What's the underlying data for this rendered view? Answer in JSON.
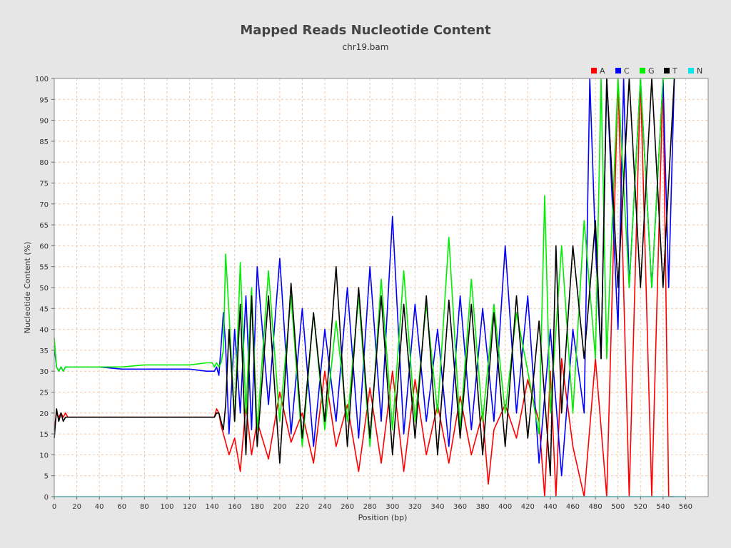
{
  "chart_data": {
    "type": "line",
    "title": "Mapped Reads Nucleotide Content",
    "subtitle": "chr19.bam",
    "xlabel": "Position (bp)",
    "ylabel": "Nucleotide Content (%)",
    "xlim": [
      0,
      580
    ],
    "ylim": [
      0,
      100
    ],
    "x_ticks": [
      0,
      20,
      40,
      60,
      80,
      100,
      120,
      140,
      160,
      180,
      200,
      220,
      240,
      260,
      280,
      300,
      320,
      340,
      360,
      380,
      400,
      420,
      440,
      460,
      480,
      500,
      520,
      540,
      560
    ],
    "y_ticks": [
      0,
      5,
      10,
      15,
      20,
      25,
      30,
      35,
      40,
      45,
      50,
      55,
      60,
      65,
      70,
      75,
      80,
      85,
      90,
      95,
      100
    ],
    "grid": true,
    "legend_position": "top-right",
    "series": [
      {
        "name": "A",
        "color": "#ff0000",
        "x": [
          0,
          2,
          4,
          6,
          8,
          10,
          12,
          20,
          40,
          60,
          80,
          100,
          120,
          135,
          140,
          142,
          144,
          146,
          148,
          150,
          152,
          155,
          160,
          165,
          170,
          175,
          180,
          190,
          200,
          210,
          220,
          230,
          240,
          250,
          260,
          270,
          280,
          290,
          300,
          310,
          320,
          330,
          340,
          350,
          360,
          370,
          380,
          385,
          390,
          400,
          410,
          420,
          430,
          435,
          440,
          445,
          450,
          460,
          470,
          480,
          490,
          500,
          510,
          520,
          530,
          540,
          545,
          550
        ],
        "values": [
          16,
          20,
          19,
          20,
          19,
          20,
          19,
          19,
          19,
          19,
          19,
          19,
          19,
          19,
          19,
          19,
          21,
          20,
          17,
          15,
          13,
          10,
          14,
          6,
          22,
          10,
          18,
          9,
          25,
          13,
          20,
          8,
          30,
          12,
          22,
          6,
          26,
          8,
          30,
          6,
          28,
          10,
          22,
          8,
          24,
          10,
          20,
          3,
          16,
          22,
          14,
          28,
          18,
          0,
          30,
          0,
          33,
          12,
          0,
          33,
          0,
          100,
          0,
          100,
          0,
          100,
          0,
          0
        ]
      },
      {
        "name": "C",
        "color": "#0000ff",
        "x": [
          0,
          2,
          4,
          6,
          8,
          10,
          12,
          20,
          40,
          60,
          80,
          100,
          120,
          135,
          140,
          142,
          144,
          146,
          148,
          150,
          152,
          155,
          160,
          165,
          170,
          175,
          180,
          190,
          200,
          210,
          220,
          230,
          240,
          250,
          260,
          270,
          280,
          290,
          300,
          310,
          320,
          330,
          340,
          350,
          360,
          370,
          380,
          390,
          400,
          410,
          420,
          430,
          440,
          450,
          460,
          470,
          475,
          480,
          485,
          490,
          500,
          505,
          510,
          520,
          530,
          540,
          545,
          550
        ],
        "values": [
          36,
          31,
          30,
          31,
          30,
          31,
          31,
          31,
          31,
          30.5,
          30.5,
          30.5,
          30.5,
          30,
          30,
          30,
          31,
          29,
          36,
          44,
          36,
          15,
          40,
          20,
          48,
          16,
          55,
          22,
          57,
          15,
          45,
          12,
          40,
          18,
          50,
          14,
          55,
          18,
          67,
          15,
          46,
          18,
          40,
          12,
          48,
          16,
          45,
          18,
          60,
          20,
          48,
          8,
          40,
          5,
          40,
          20,
          100,
          60,
          33,
          100,
          40,
          100,
          50,
          100,
          50,
          100,
          50,
          100
        ]
      },
      {
        "name": "G",
        "color": "#00ee00",
        "x": [
          0,
          2,
          4,
          6,
          8,
          10,
          12,
          20,
          40,
          60,
          80,
          100,
          120,
          135,
          140,
          142,
          144,
          146,
          148,
          150,
          152,
          155,
          160,
          165,
          170,
          175,
          180,
          190,
          200,
          210,
          220,
          230,
          240,
          250,
          260,
          270,
          280,
          290,
          300,
          310,
          320,
          330,
          340,
          350,
          360,
          370,
          380,
          390,
          400,
          410,
          420,
          430,
          435,
          440,
          450,
          460,
          470,
          480,
          485,
          490,
          500,
          510,
          520,
          530,
          540,
          550
        ],
        "values": [
          38,
          31,
          30,
          31,
          30,
          31,
          31,
          31,
          31,
          31,
          31.5,
          31.5,
          31.5,
          32,
          32,
          31,
          32,
          31,
          32,
          35,
          58,
          44,
          18,
          56,
          20,
          50,
          16,
          54,
          18,
          48,
          12,
          44,
          16,
          42,
          18,
          48,
          12,
          52,
          16,
          54,
          18,
          46,
          20,
          62,
          16,
          52,
          18,
          46,
          20,
          44,
          30,
          15,
          72,
          20,
          60,
          20,
          66,
          33,
          100,
          33,
          100,
          50,
          100,
          50,
          100,
          100
        ]
      },
      {
        "name": "T",
        "color": "#000000",
        "x": [
          0,
          2,
          4,
          6,
          8,
          10,
          12,
          20,
          40,
          60,
          80,
          100,
          120,
          135,
          140,
          142,
          144,
          146,
          148,
          150,
          152,
          155,
          160,
          165,
          170,
          175,
          180,
          190,
          200,
          210,
          220,
          230,
          240,
          250,
          260,
          270,
          280,
          290,
          300,
          310,
          320,
          330,
          340,
          350,
          360,
          370,
          380,
          390,
          400,
          410,
          420,
          430,
          440,
          445,
          450,
          460,
          470,
          480,
          485,
          490,
          500,
          510,
          520,
          530,
          540,
          550
        ],
        "values": [
          14,
          21,
          18,
          20,
          18,
          19,
          19,
          19,
          19,
          19,
          19,
          19,
          19,
          19,
          19,
          19,
          20,
          20,
          18,
          16,
          22,
          40,
          18,
          46,
          10,
          48,
          12,
          48,
          8,
          51,
          14,
          44,
          18,
          55,
          12,
          50,
          14,
          48,
          10,
          46,
          14,
          48,
          10,
          47,
          14,
          46,
          10,
          44,
          12,
          48,
          14,
          42,
          5,
          60,
          20,
          60,
          33,
          66,
          33,
          100,
          50,
          100,
          50,
          100,
          50,
          100
        ]
      },
      {
        "name": "N",
        "color": "#00e5e5",
        "x": [
          0,
          560
        ],
        "values": [
          0,
          0
        ]
      }
    ]
  }
}
